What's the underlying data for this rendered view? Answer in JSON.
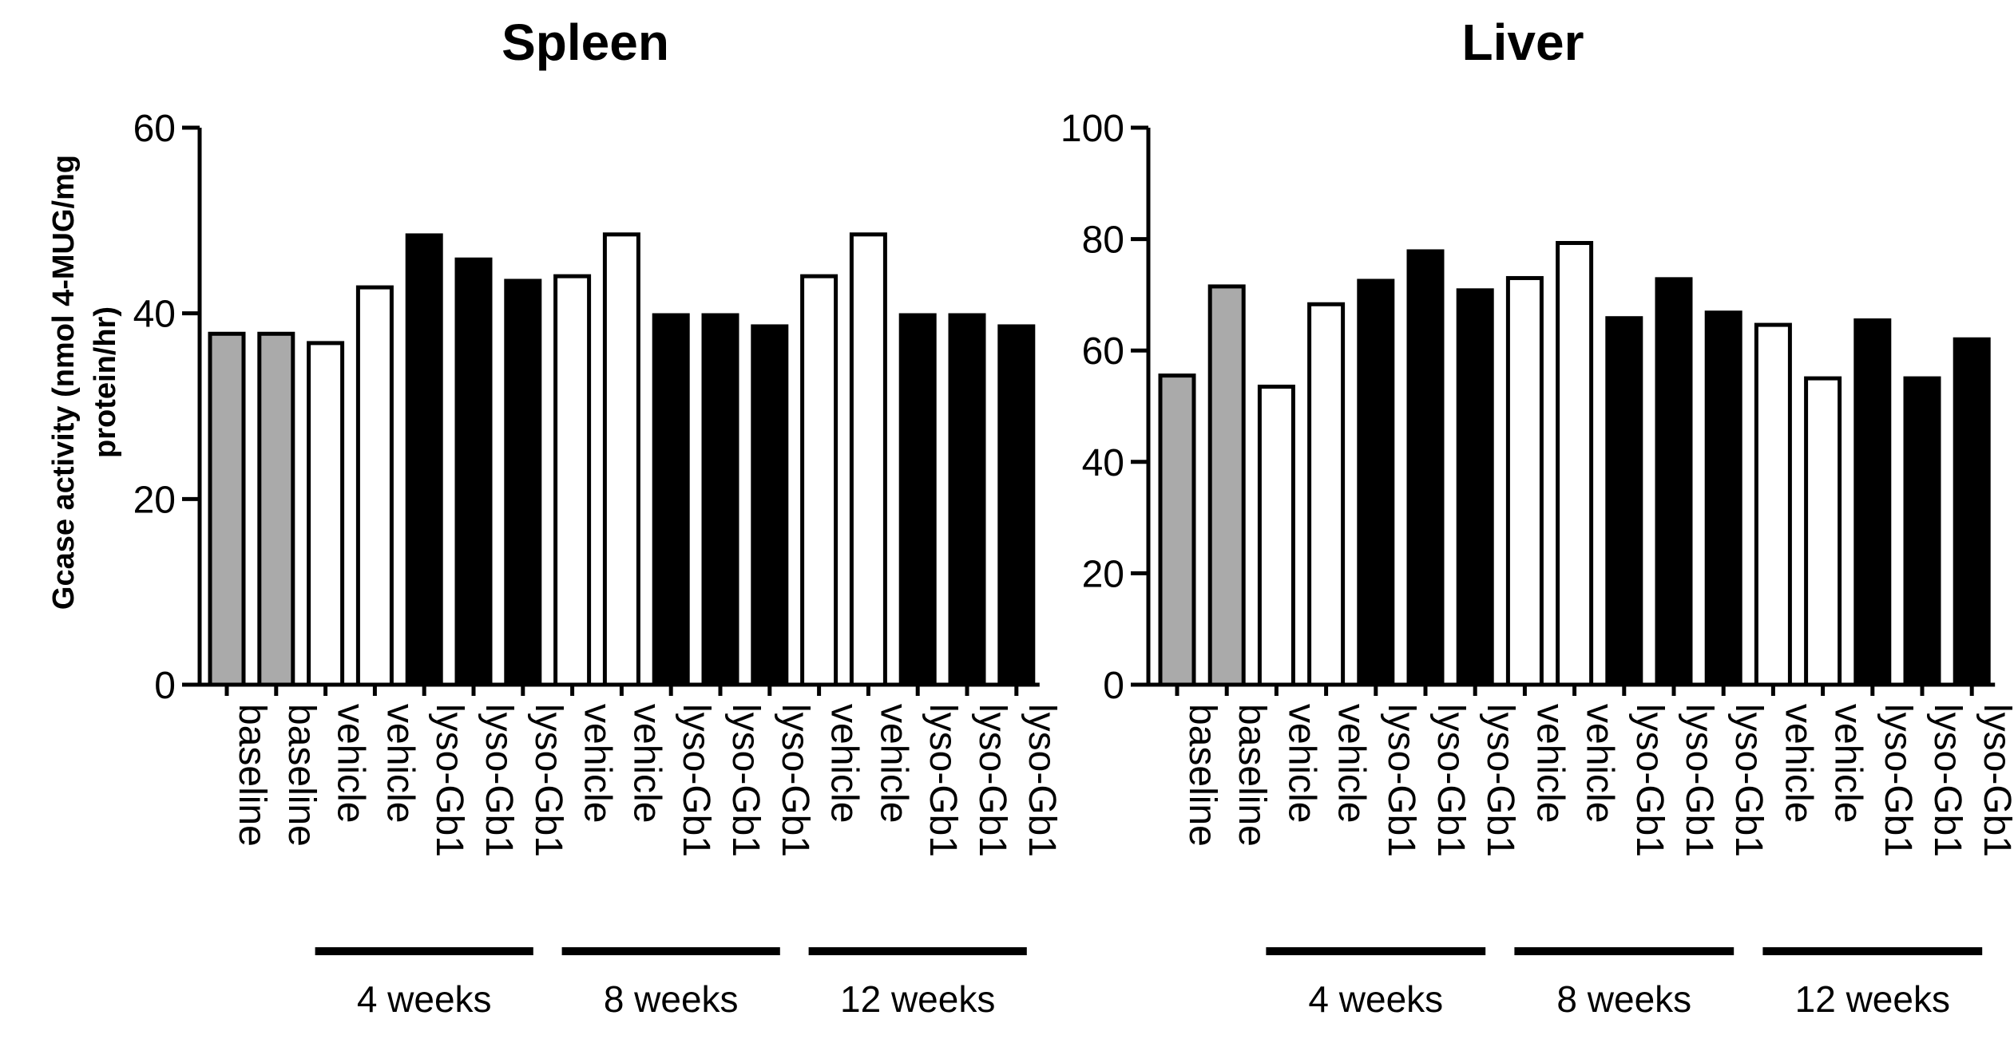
{
  "chart_data": [
    {
      "type": "bar",
      "title": "Spleen",
      "ylabel": "Gcase activity (nmol 4-MUG/mg protein/hr)",
      "ylim": [
        0,
        60
      ],
      "yticks": [
        0,
        20,
        40,
        60
      ],
      "categories": [
        "baseline",
        "baseline",
        "vehicle",
        "vehicle",
        "lyso-Gb1",
        "lyso-Gb1",
        "lyso-Gb1",
        "vehicle",
        "vehicle",
        "lyso-Gb1",
        "lyso-Gb1",
        "lyso-Gb1",
        "vehicle",
        "vehicle",
        "lyso-Gb1",
        "lyso-Gb1",
        "lyso-Gb1"
      ],
      "values": [
        37.8,
        37.8,
        36.8,
        42.8,
        48.4,
        45.8,
        43.5,
        44.0,
        48.5,
        39.8,
        39.8,
        38.6,
        44.0,
        48.5,
        39.8,
        39.8,
        38.6
      ],
      "colors": [
        "#aaaaaa",
        "#aaaaaa",
        "#ffffff",
        "#ffffff",
        "#000000",
        "#000000",
        "#000000",
        "#ffffff",
        "#ffffff",
        "#000000",
        "#000000",
        "#000000",
        "#ffffff",
        "#ffffff",
        "#000000",
        "#000000",
        "#000000"
      ],
      "groups": [
        {
          "label": "4 weeks",
          "start": 2,
          "end": 6
        },
        {
          "label": "8 weeks",
          "start": 7,
          "end": 11
        },
        {
          "label": "12 weeks",
          "start": 12,
          "end": 16
        }
      ]
    },
    {
      "type": "bar",
      "title": "Liver",
      "ylabel": "",
      "ylim": [
        0,
        100
      ],
      "yticks": [
        0,
        20,
        40,
        60,
        80,
        100
      ],
      "categories": [
        "baseline",
        "baseline",
        "vehicle",
        "vehicle",
        "lyso-Gb1",
        "lyso-Gb1",
        "lyso-Gb1",
        "vehicle",
        "vehicle",
        "lyso-Gb1",
        "lyso-Gb1",
        "lyso-Gb1",
        "vehicle",
        "vehicle",
        "lyso-Gb1",
        "lyso-Gb1",
        "lyso-Gb1"
      ],
      "values": [
        55.5,
        71.5,
        53.5,
        68.3,
        72.5,
        77.8,
        70.8,
        73.0,
        79.3,
        65.8,
        72.8,
        66.8,
        64.6,
        55.0,
        65.4,
        55.0,
        62.0
      ],
      "colors": [
        "#aaaaaa",
        "#aaaaaa",
        "#ffffff",
        "#ffffff",
        "#000000",
        "#000000",
        "#000000",
        "#ffffff",
        "#ffffff",
        "#000000",
        "#000000",
        "#000000",
        "#ffffff",
        "#ffffff",
        "#000000",
        "#000000",
        "#000000"
      ],
      "groups": [
        {
          "label": "4 weeks",
          "start": 2,
          "end": 6
        },
        {
          "label": "8 weeks",
          "start": 7,
          "end": 11
        },
        {
          "label": "12 weeks",
          "start": 12,
          "end": 16
        }
      ]
    }
  ]
}
